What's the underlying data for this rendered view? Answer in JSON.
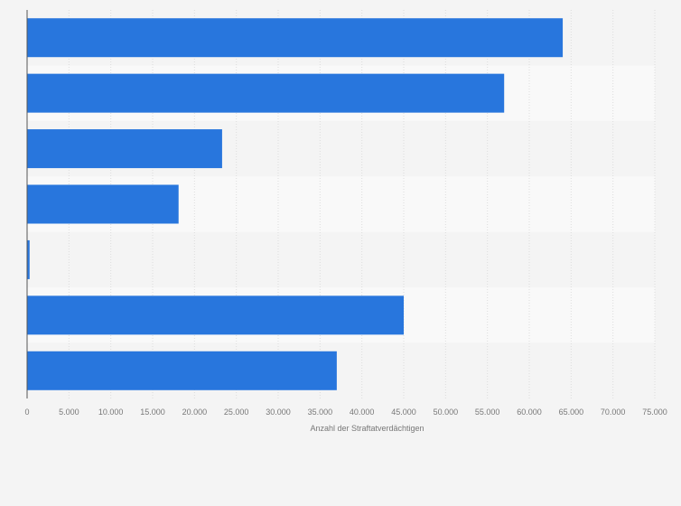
{
  "chart_data": {
    "type": "bar",
    "orientation": "horizontal",
    "title": "",
    "xlabel": "Anzahl der Straftatverdächtigen",
    "ylabel": "",
    "categories": [
      "",
      "",
      "",
      "",
      "",
      "",
      ""
    ],
    "values": [
      64000,
      57000,
      23300,
      18100,
      300,
      45000,
      37000
    ],
    "xlim": [
      0,
      75000
    ],
    "xticks": [
      0,
      5000,
      10000,
      15000,
      20000,
      25000,
      30000,
      35000,
      40000,
      45000,
      50000,
      55000,
      60000,
      65000,
      70000,
      75000
    ],
    "xtick_labels": [
      "0",
      "5.000",
      "10.000",
      "15.000",
      "20.000",
      "25.000",
      "30.000",
      "35.000",
      "40.000",
      "45.000",
      "50.000",
      "55.000",
      "60.000",
      "65.000",
      "70.000",
      "75.000"
    ],
    "grid": true,
    "legend": "none",
    "colors": {
      "bar": "#2876dd",
      "row_band": "#f9f9f9",
      "background": "#f4f4f4",
      "grid": "#dddddd",
      "axis": "#555555",
      "tick_text": "#777777"
    }
  }
}
